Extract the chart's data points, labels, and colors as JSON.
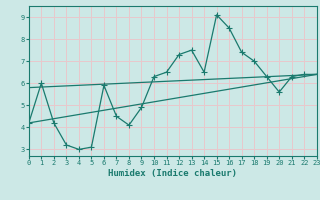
{
  "xlabel": "Humidex (Indice chaleur)",
  "bg_color": "#cce8e6",
  "grid_color": "#e8c8cc",
  "line_color": "#1a7a6e",
  "line1_x": [
    0,
    1,
    2,
    3,
    4,
    5,
    6,
    7,
    8,
    9,
    10,
    11,
    12,
    13,
    14,
    15,
    16,
    17,
    18,
    19,
    20,
    21,
    22,
    23
  ],
  "line1_y": [
    4.2,
    6.0,
    4.2,
    3.2,
    3.0,
    3.1,
    5.9,
    4.5,
    4.1,
    4.9,
    6.3,
    6.5,
    7.3,
    7.5,
    6.5,
    9.1,
    8.5,
    7.4,
    7.0,
    6.3,
    5.6,
    6.3,
    6.4,
    6.4
  ],
  "line2_x": [
    0,
    23
  ],
  "line2_y": [
    4.2,
    6.4
  ],
  "line3_x": [
    0,
    23
  ],
  "line3_y": [
    5.8,
    6.4
  ],
  "xlim": [
    0,
    23
  ],
  "ylim": [
    2.7,
    9.5
  ],
  "yticks": [
    3,
    4,
    5,
    6,
    7,
    8,
    9
  ],
  "xticks": [
    0,
    1,
    2,
    3,
    4,
    5,
    6,
    7,
    8,
    9,
    10,
    11,
    12,
    13,
    14,
    15,
    16,
    17,
    18,
    19,
    20,
    21,
    22,
    23
  ]
}
